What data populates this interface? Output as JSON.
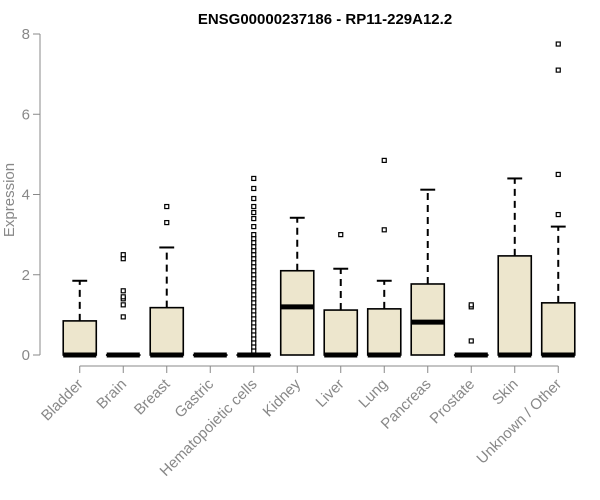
{
  "chart_data": {
    "type": "boxplot",
    "title": "ENSG00000237186 - RP11-229A12.2",
    "xlabel": "",
    "ylabel": "Expression",
    "ylim": [
      0,
      8
    ],
    "yticks": [
      0,
      2,
      4,
      6,
      8
    ],
    "grid": false,
    "legend": "none",
    "colors": {
      "box_fill": "#ede6cd",
      "box_stroke": "#000000",
      "axis": "#888888"
    },
    "categories": [
      "Bladder",
      "Brain",
      "Breast",
      "Gastric",
      "Hematopoietic cells",
      "Kidney",
      "Liver",
      "Lung",
      "Pancreas",
      "Prostate",
      "Skin",
      "Unknown / Other"
    ],
    "boxes": [
      {
        "category": "Bladder",
        "min": 0,
        "q1": 0,
        "median": 0,
        "q3": 0.85,
        "max": 1.85,
        "outliers": []
      },
      {
        "category": "Brain",
        "min": 0,
        "q1": 0,
        "median": 0,
        "q3": 0,
        "max": 0,
        "outliers": [
          0.95,
          1.25,
          1.4,
          1.45,
          1.6,
          2.4,
          2.5
        ]
      },
      {
        "category": "Breast",
        "min": 0,
        "q1": 0,
        "median": 0,
        "q3": 1.18,
        "max": 2.68,
        "outliers": [
          3.3,
          3.7
        ]
      },
      {
        "category": "Gastric",
        "min": 0,
        "q1": 0,
        "median": 0,
        "q3": 0,
        "max": 0,
        "outliers": []
      },
      {
        "category": "Hematopoietic cells",
        "min": 0,
        "q1": 0,
        "median": 0,
        "q3": 0,
        "max": 0,
        "outliers": [
          0.1,
          0.2,
          0.3,
          0.4,
          0.5,
          0.6,
          0.7,
          0.8,
          0.9,
          1.0,
          1.1,
          1.2,
          1.3,
          1.4,
          1.5,
          1.6,
          1.7,
          1.8,
          1.9,
          2.0,
          2.1,
          2.2,
          2.3,
          2.4,
          2.5,
          2.6,
          2.7,
          2.8,
          2.9,
          3.0,
          3.2,
          3.4,
          3.55,
          3.7,
          3.9,
          4.15,
          4.4
        ]
      },
      {
        "category": "Kidney",
        "min": 0,
        "q1": 0,
        "median": 1.2,
        "q3": 2.1,
        "max": 3.42,
        "outliers": []
      },
      {
        "category": "Liver",
        "min": 0,
        "q1": 0,
        "median": 0,
        "q3": 1.12,
        "max": 2.15,
        "outliers": [
          3.0
        ]
      },
      {
        "category": "Lung",
        "min": 0,
        "q1": 0,
        "median": 0,
        "q3": 1.15,
        "max": 1.85,
        "outliers": [
          3.12,
          4.85
        ]
      },
      {
        "category": "Pancreas",
        "min": 0,
        "q1": 0,
        "median": 0.82,
        "q3": 1.77,
        "max": 4.12,
        "outliers": []
      },
      {
        "category": "Prostate",
        "min": 0,
        "q1": 0,
        "median": 0,
        "q3": 0,
        "max": 0,
        "outliers": [
          0.35,
          1.2,
          1.25
        ]
      },
      {
        "category": "Skin",
        "min": 0,
        "q1": 0,
        "median": 0,
        "q3": 2.47,
        "max": 4.4,
        "outliers": []
      },
      {
        "category": "Unknown / Other",
        "min": 0,
        "q1": 0,
        "median": 0,
        "q3": 1.3,
        "max": 3.2,
        "outliers": [
          3.5,
          4.5,
          7.1,
          7.75
        ]
      }
    ]
  }
}
